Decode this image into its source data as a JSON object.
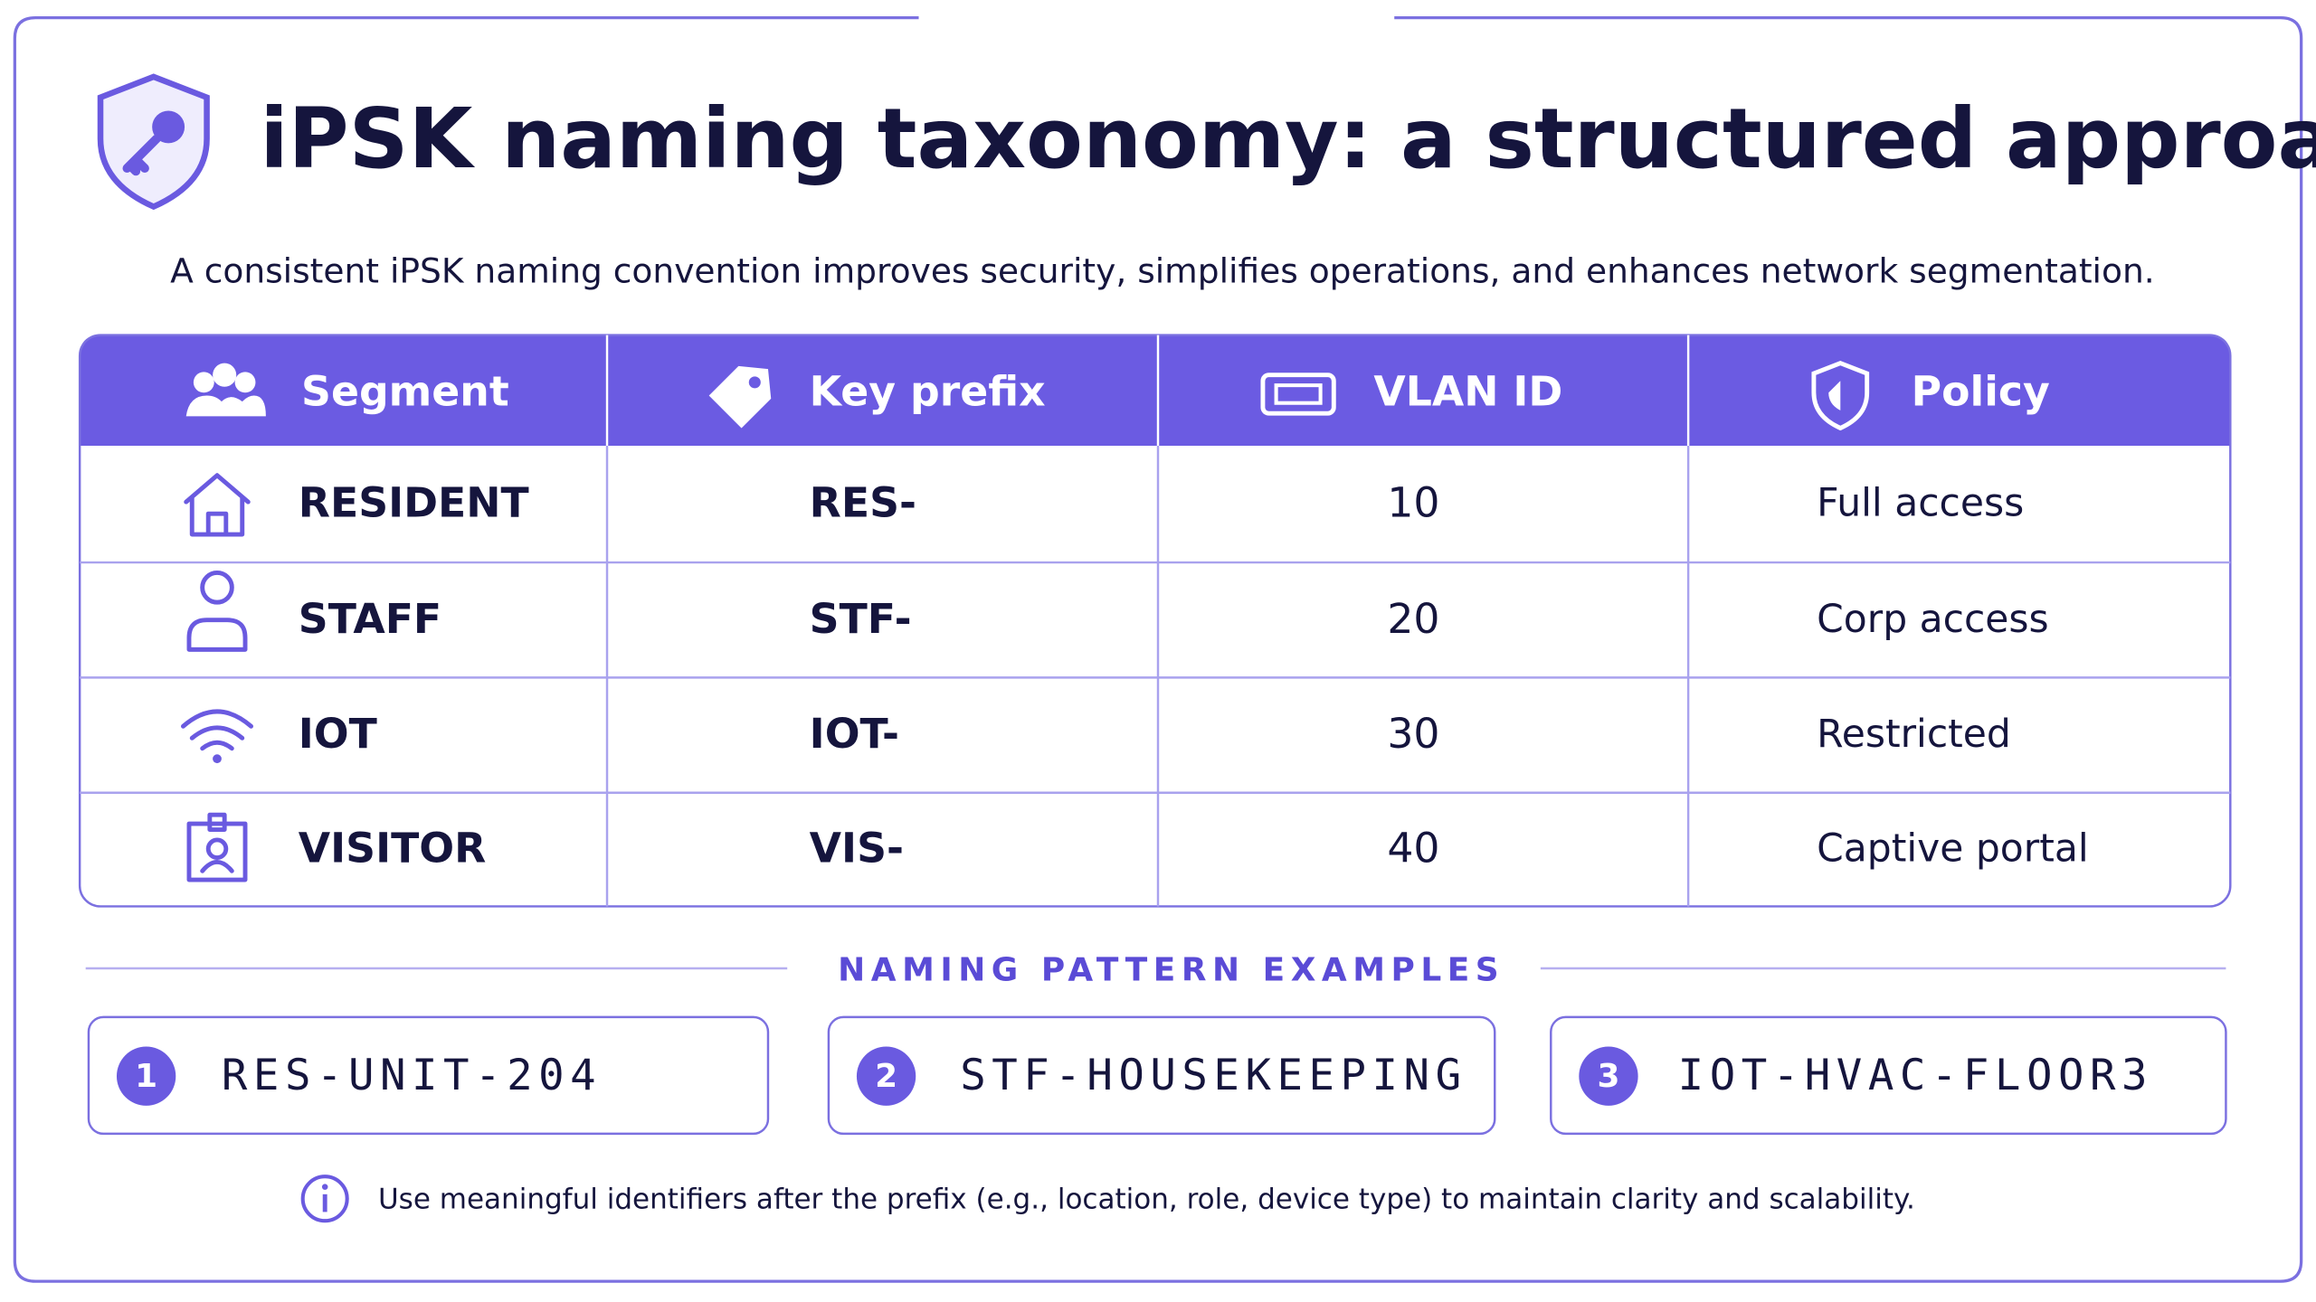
{
  "header": {
    "title": "iPSK naming taxonomy: a structured approach",
    "subtitle": "A consistent iPSK naming convention improves security, simplifies operations, and enhances network segmentation."
  },
  "table": {
    "columns": [
      "Segment",
      "Key prefix",
      "VLAN ID",
      "Policy"
    ],
    "rows": [
      [
        "RESIDENT",
        "RES-",
        10,
        "Full access"
      ],
      [
        "STAFF",
        "STF-",
        20,
        "Corp access"
      ],
      [
        "IOT",
        "IOT-",
        30,
        "Restricted"
      ],
      [
        "VISITOR",
        "VIS-",
        40,
        "Captive portal"
      ]
    ]
  },
  "examples": {
    "heading": "NAMING PATTERN EXAMPLES",
    "items": [
      {
        "number": 1,
        "text": "RES-UNIT-204"
      },
      {
        "number": 2,
        "text": "STF-HOUSEKEEPING"
      },
      {
        "number": 3,
        "text": "IOT-HVAC-FLOOR3"
      }
    ]
  },
  "note": "Use meaningful identifiers after the prefix (e.g., location, role, device type) to maintain clarity and scalability."
}
